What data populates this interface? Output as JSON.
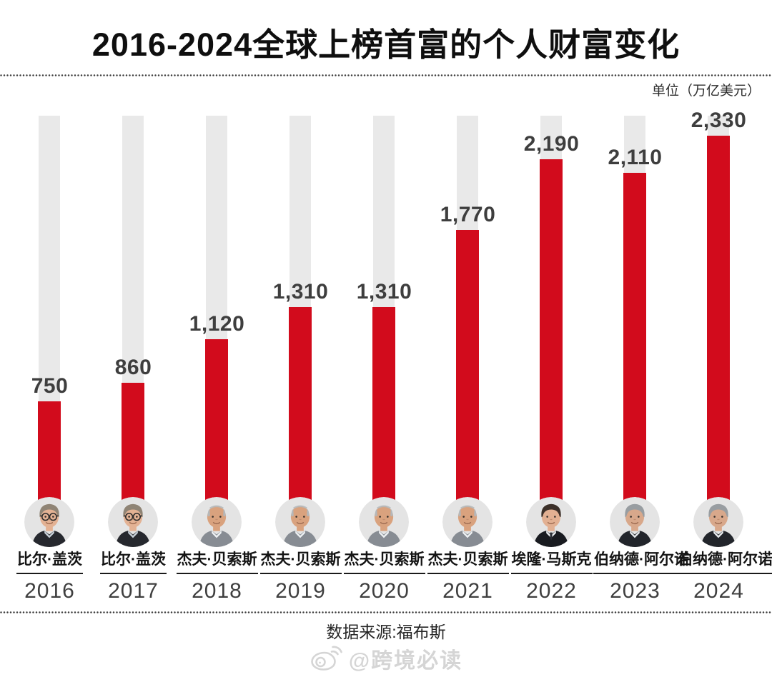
{
  "title": "2016-2024全球上榜首富的个人财富变化",
  "unit_label": "单位（万亿美元）",
  "source": "数据来源:福布斯",
  "watermark": {
    "icon": "weibo-icon",
    "text": "@跨境必读"
  },
  "colors": {
    "bar_red": "#d20b1c",
    "track_gray": "#e9e9e9",
    "value_text": "#3e3e3e",
    "title_text": "#0f0f0f",
    "watermark_gray": "#d5d5d5"
  },
  "chart_data": {
    "type": "bar",
    "title": "2016-2024全球上榜首富的个人财富变化",
    "unit": "万亿美元",
    "categories": [
      "2016",
      "2017",
      "2018",
      "2019",
      "2020",
      "2021",
      "2022",
      "2023",
      "2024"
    ],
    "values": [
      750,
      860,
      1120,
      1310,
      1310,
      1770,
      2190,
      2110,
      2330
    ],
    "names": [
      "比尔·盖茨",
      "比尔·盖茨",
      "杰夫·贝索斯",
      "杰夫·贝索斯",
      "杰夫·贝索斯",
      "杰夫·贝索斯",
      "埃隆·马斯克",
      "伯纳德·阿尔诺",
      "伯纳德·阿尔诺"
    ],
    "avatars": [
      "gates",
      "gates",
      "bezos",
      "bezos",
      "bezos",
      "bezos",
      "musk",
      "arnault",
      "arnault"
    ],
    "xlabel": "",
    "ylabel": "",
    "ylim": [
      0,
      2450
    ],
    "grid": false,
    "legend": false,
    "data_labels": true,
    "source": "福布斯"
  }
}
